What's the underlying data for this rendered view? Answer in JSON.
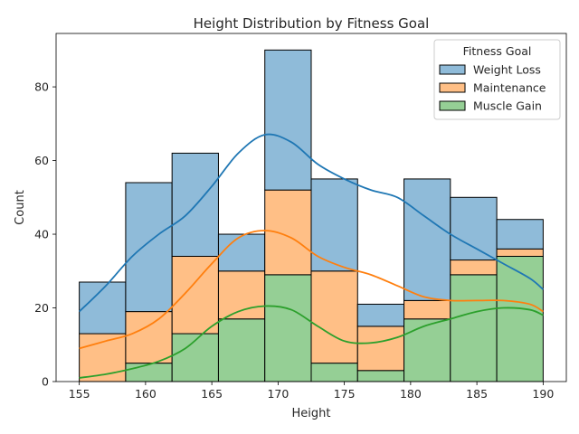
{
  "chart_data": {
    "type": "bar",
    "stacked": true,
    "title": "Height Distribution by Fitness Goal",
    "xlabel": "Height",
    "ylabel": "Count",
    "xlim": [
      153.25,
      191.75
    ],
    "ylim": [
      0,
      94.5
    ],
    "x_ticks": [
      155,
      160,
      165,
      170,
      175,
      180,
      185,
      190
    ],
    "y_ticks": [
      0,
      20,
      40,
      60,
      80
    ],
    "bin_edges": [
      155,
      158.5,
      162,
      165.5,
      169,
      172.5,
      176,
      179.5,
      183,
      186.5,
      190
    ],
    "legend": {
      "title": "Fitness Goal",
      "placement": "upper-right"
    },
    "grid": false,
    "series": [
      {
        "name": "Weight Loss",
        "color": "#1f77b4",
        "fill": "#8fbbd9",
        "values": [
          14,
          35,
          28,
          10,
          38,
          25,
          6,
          33,
          17,
          8
        ]
      },
      {
        "name": "Maintenance",
        "color": "#ff7f0e",
        "fill": "#ffbf86",
        "values": [
          13,
          14,
          21,
          13,
          23,
          25,
          12,
          5,
          4,
          2
        ]
      },
      {
        "name": "Muscle Gain",
        "color": "#2ca02c",
        "fill": "#95cf95",
        "values": [
          0,
          5,
          13,
          17,
          29,
          5,
          3,
          17,
          29,
          34
        ]
      }
    ],
    "kde_curves": [
      {
        "name": "Weight Loss",
        "color": "#1f77b4",
        "x": [
          155,
          157,
          159,
          161,
          163,
          165,
          167,
          169,
          171,
          173,
          175,
          177,
          179,
          181,
          183,
          185,
          187,
          189,
          190
        ],
        "y": [
          19,
          26,
          34,
          40,
          45,
          53,
          62,
          67,
          65,
          59,
          55,
          52,
          50,
          45,
          40,
          36,
          32,
          28,
          25
        ]
      },
      {
        "name": "Maintenance",
        "color": "#ff7f0e",
        "x": [
          155,
          157,
          159,
          161,
          163,
          165,
          167,
          169,
          171,
          173,
          175,
          177,
          179,
          181,
          183,
          185,
          187,
          189,
          190
        ],
        "y": [
          9,
          11,
          13,
          17,
          24,
          32,
          39,
          41,
          39,
          34,
          31,
          29,
          26,
          23,
          22,
          22,
          22,
          21,
          19
        ]
      },
      {
        "name": "Muscle Gain",
        "color": "#2ca02c",
        "x": [
          155,
          157,
          159,
          161,
          163,
          165,
          167,
          169,
          171,
          173,
          175,
          177,
          179,
          181,
          183,
          185,
          187,
          189,
          190
        ],
        "y": [
          1,
          2,
          3.5,
          5.5,
          9,
          15,
          19,
          20.5,
          19.5,
          15,
          11,
          10.5,
          12,
          15,
          17,
          19,
          20,
          19.5,
          18
        ]
      }
    ]
  }
}
